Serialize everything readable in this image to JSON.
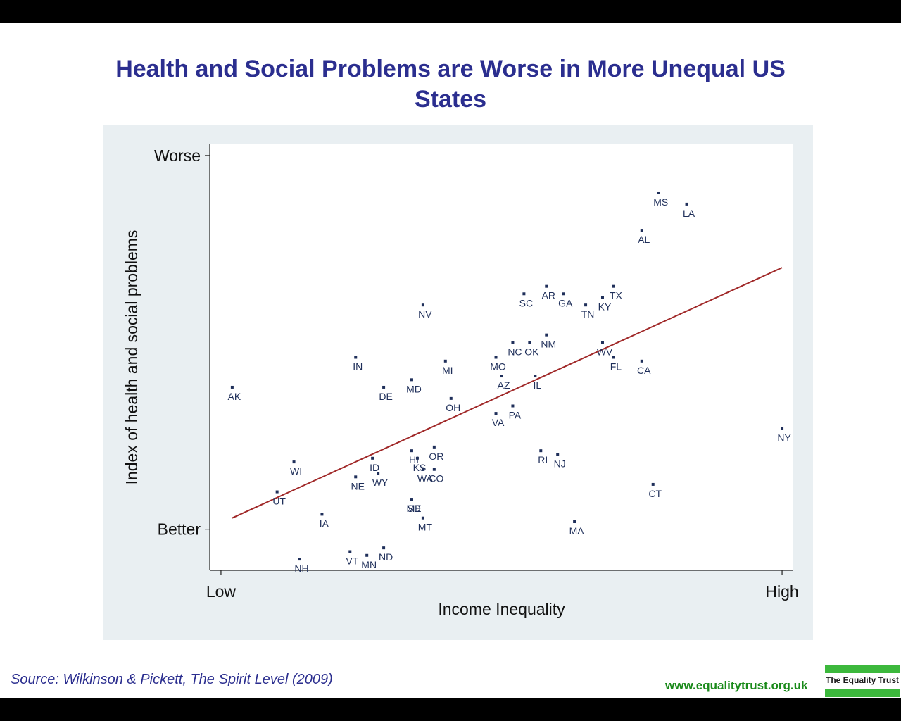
{
  "header": {
    "title_line1": "Health and Social Problems are Worse in More Unequal US",
    "title_line2": "States"
  },
  "footer": {
    "source": "Source: Wilkinson & Pickett, The Spirit Level (2009)",
    "website": "www.equalitytrust.org.uk",
    "logo_text": "The Equality Trust"
  },
  "colors": {
    "title": "#2b2e8f",
    "points": "#1f2f5a",
    "fit_line": "#a02828",
    "panel_bg": "#e9eff2",
    "logo_green": "#3cb83c",
    "website": "#1a8a1a"
  },
  "chart_data": {
    "type": "scatter",
    "xlabel": "Income Inequality",
    "ylabel": "Index of health and social problems",
    "x_ticks": [
      {
        "value": 0,
        "label": "Low"
      },
      {
        "value": 1,
        "label": "High"
      }
    ],
    "y_ticks": [
      {
        "value": 0,
        "label": "Better"
      },
      {
        "value": 1,
        "label": "Worse"
      }
    ],
    "xlim": [
      -0.02,
      1.02
    ],
    "ylim": [
      -0.11,
      1.03
    ],
    "grid": false,
    "trendline": {
      "x0": 0.02,
      "y0": 0.03,
      "x1": 1.0,
      "y1": 0.7
    },
    "points": [
      {
        "label": "AK",
        "x": 0.02,
        "y": 0.38
      },
      {
        "label": "NH",
        "x": 0.14,
        "y": -0.08
      },
      {
        "label": "UT",
        "x": 0.1,
        "y": 0.1
      },
      {
        "label": "WI",
        "x": 0.13,
        "y": 0.18
      },
      {
        "label": "IA",
        "x": 0.18,
        "y": 0.04
      },
      {
        "label": "NE",
        "x": 0.24,
        "y": 0.14
      },
      {
        "label": "VT",
        "x": 0.23,
        "y": -0.06
      },
      {
        "label": "MN",
        "x": 0.26,
        "y": -0.07
      },
      {
        "label": "ND",
        "x": 0.29,
        "y": -0.05
      },
      {
        "label": "IN",
        "x": 0.24,
        "y": 0.46
      },
      {
        "label": "ID",
        "x": 0.27,
        "y": 0.19
      },
      {
        "label": "WY",
        "x": 0.28,
        "y": 0.15
      },
      {
        "label": "DE",
        "x": 0.29,
        "y": 0.38
      },
      {
        "label": "MD",
        "x": 0.34,
        "y": 0.4
      },
      {
        "label": "SD",
        "x": 0.34,
        "y": 0.08
      },
      {
        "label": "ME",
        "x": 0.34,
        "y": 0.08
      },
      {
        "label": "MT",
        "x": 0.36,
        "y": 0.03
      },
      {
        "label": "HI",
        "x": 0.34,
        "y": 0.21
      },
      {
        "label": "KS",
        "x": 0.35,
        "y": 0.19
      },
      {
        "label": "WA",
        "x": 0.36,
        "y": 0.16
      },
      {
        "label": "OR",
        "x": 0.38,
        "y": 0.22
      },
      {
        "label": "CO",
        "x": 0.38,
        "y": 0.16
      },
      {
        "label": "NV",
        "x": 0.36,
        "y": 0.6
      },
      {
        "label": "MI",
        "x": 0.4,
        "y": 0.45
      },
      {
        "label": "OH",
        "x": 0.41,
        "y": 0.35
      },
      {
        "label": "VA",
        "x": 0.49,
        "y": 0.31
      },
      {
        "label": "MO",
        "x": 0.49,
        "y": 0.46
      },
      {
        "label": "AZ",
        "x": 0.5,
        "y": 0.41
      },
      {
        "label": "PA",
        "x": 0.52,
        "y": 0.33
      },
      {
        "label": "NC",
        "x": 0.52,
        "y": 0.5
      },
      {
        "label": "OK",
        "x": 0.55,
        "y": 0.5
      },
      {
        "label": "IL",
        "x": 0.56,
        "y": 0.41
      },
      {
        "label": "NM",
        "x": 0.58,
        "y": 0.52
      },
      {
        "label": "SC",
        "x": 0.54,
        "y": 0.63
      },
      {
        "label": "AR",
        "x": 0.58,
        "y": 0.65
      },
      {
        "label": "GA",
        "x": 0.61,
        "y": 0.63
      },
      {
        "label": "TN",
        "x": 0.65,
        "y": 0.6
      },
      {
        "label": "KY",
        "x": 0.68,
        "y": 0.62
      },
      {
        "label": "TX",
        "x": 0.7,
        "y": 0.65
      },
      {
        "label": "WV",
        "x": 0.68,
        "y": 0.5
      },
      {
        "label": "FL",
        "x": 0.7,
        "y": 0.46
      },
      {
        "label": "CA",
        "x": 0.75,
        "y": 0.45
      },
      {
        "label": "RI",
        "x": 0.57,
        "y": 0.21
      },
      {
        "label": "NJ",
        "x": 0.6,
        "y": 0.2
      },
      {
        "label": "MA",
        "x": 0.63,
        "y": 0.02
      },
      {
        "label": "CT",
        "x": 0.77,
        "y": 0.12
      },
      {
        "label": "AL",
        "x": 0.75,
        "y": 0.8
      },
      {
        "label": "MS",
        "x": 0.78,
        "y": 0.9
      },
      {
        "label": "LA",
        "x": 0.83,
        "y": 0.87
      },
      {
        "label": "NY",
        "x": 1.0,
        "y": 0.27
      }
    ]
  }
}
